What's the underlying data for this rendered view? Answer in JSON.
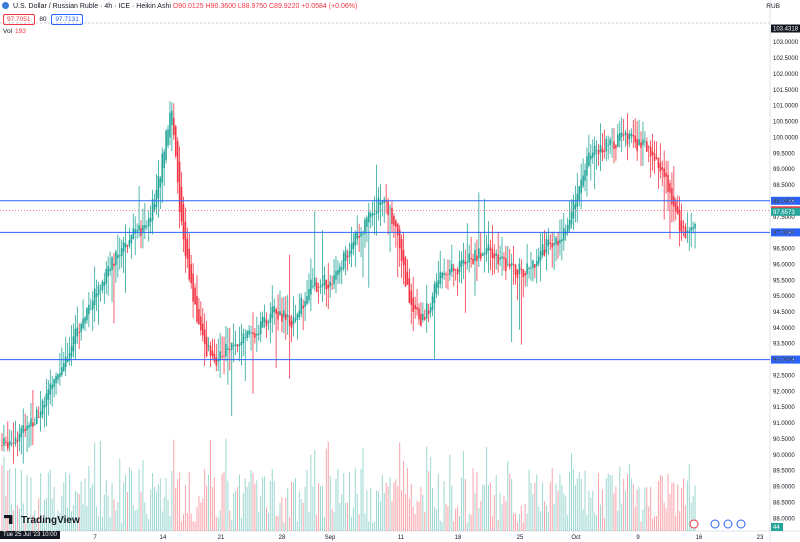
{
  "header": {
    "symbol_line": "U.S. Dollar / Russian Ruble · 4h · ICE · Heikin Ashi",
    "ohlc": "O90.0125  H90.3600  L88.9750  C89.9220  +0.0584 (+0.06%)",
    "currency": "RUB"
  },
  "price_boxes": {
    "sell": "97.7051",
    "qty": "80",
    "buy": "97.7131"
  },
  "volume_label": {
    "label": "Vol",
    "value": "193"
  },
  "brand": "TradingView",
  "date_label": "Tue 25 Jul '23  10:00",
  "colors": {
    "up": "#26a69a",
    "down": "#f23645",
    "level_line": "#2962ff",
    "last": "#f23645"
  },
  "chart_data": {
    "type": "candlestick",
    "style": "Heikin Ashi",
    "timeframe": "4h",
    "ylim": [
      87.6,
      103.7
    ],
    "y_ticks": [
      "103.0000",
      "102.5000",
      "102.0000",
      "101.5000",
      "101.0000",
      "100.5000",
      "100.0000",
      "99.5000",
      "99.0000",
      "98.5000",
      "98.0000",
      "97.5000",
      "97.0000",
      "96.5000",
      "96.0000",
      "95.5000",
      "95.0000",
      "94.5000",
      "94.0000",
      "93.5000",
      "93.0000",
      "92.5000",
      "92.0000",
      "91.5000",
      "91.0000",
      "90.5000",
      "90.0000",
      "89.5000",
      "89.0000",
      "88.5000",
      "88.0000"
    ],
    "x_labels": [
      "7",
      "14",
      "21",
      "28",
      "Sep",
      "11",
      "18",
      "25",
      "Oct",
      "9",
      "16",
      "23"
    ],
    "horizontal_levels": [
      {
        "value": 98.0038,
        "label": "98.0038",
        "color": "#2962ff"
      },
      {
        "value": 97.008,
        "label": "97.0080",
        "color": "#2962ff"
      },
      {
        "value": 93.0003,
        "label": "93.0003",
        "color": "#2962ff"
      }
    ],
    "price_tags": [
      {
        "value": 103.4318,
        "label": "103.4318",
        "color": "#131722"
      },
      {
        "value": 97.7051,
        "label": "97.7051",
        "color": "#f23645"
      },
      {
        "value": 97.6573,
        "label": "97.6573",
        "color": "#26a69a"
      }
    ],
    "volume_scale_tag": "44",
    "trend_points": [
      [
        0,
        90.3
      ],
      [
        12,
        90.8
      ],
      [
        22,
        91.6
      ],
      [
        34,
        93.2
      ],
      [
        44,
        94.6
      ],
      [
        56,
        96.0
      ],
      [
        66,
        96.9
      ],
      [
        74,
        97.1
      ],
      [
        80,
        98.2
      ],
      [
        86,
        100.5
      ],
      [
        88,
        101.0
      ],
      [
        92,
        97.5
      ],
      [
        100,
        94.5
      ],
      [
        106,
        93.3
      ],
      [
        112,
        93.0
      ],
      [
        120,
        93.6
      ],
      [
        130,
        93.8
      ],
      [
        140,
        94.5
      ],
      [
        150,
        94.2
      ],
      [
        160,
        95.3
      ],
      [
        170,
        95.5
      ],
      [
        180,
        96.5
      ],
      [
        190,
        97.5
      ],
      [
        198,
        98.1
      ],
      [
        204,
        97.2
      ],
      [
        212,
        94.5
      ],
      [
        218,
        94.2
      ],
      [
        226,
        95.5
      ],
      [
        236,
        95.9
      ],
      [
        244,
        96.2
      ],
      [
        252,
        96.5
      ],
      [
        262,
        95.8
      ],
      [
        272,
        95.8
      ],
      [
        280,
        96.5
      ],
      [
        288,
        96.7
      ],
      [
        296,
        97.8
      ],
      [
        304,
        99.5
      ],
      [
        312,
        99.7
      ],
      [
        322,
        100.0
      ],
      [
        330,
        99.8
      ],
      [
        336,
        99.5
      ],
      [
        342,
        99.0
      ],
      [
        348,
        97.7
      ],
      [
        354,
        96.8
      ],
      [
        360,
        97.3
      ]
    ],
    "candles_count": 360
  }
}
